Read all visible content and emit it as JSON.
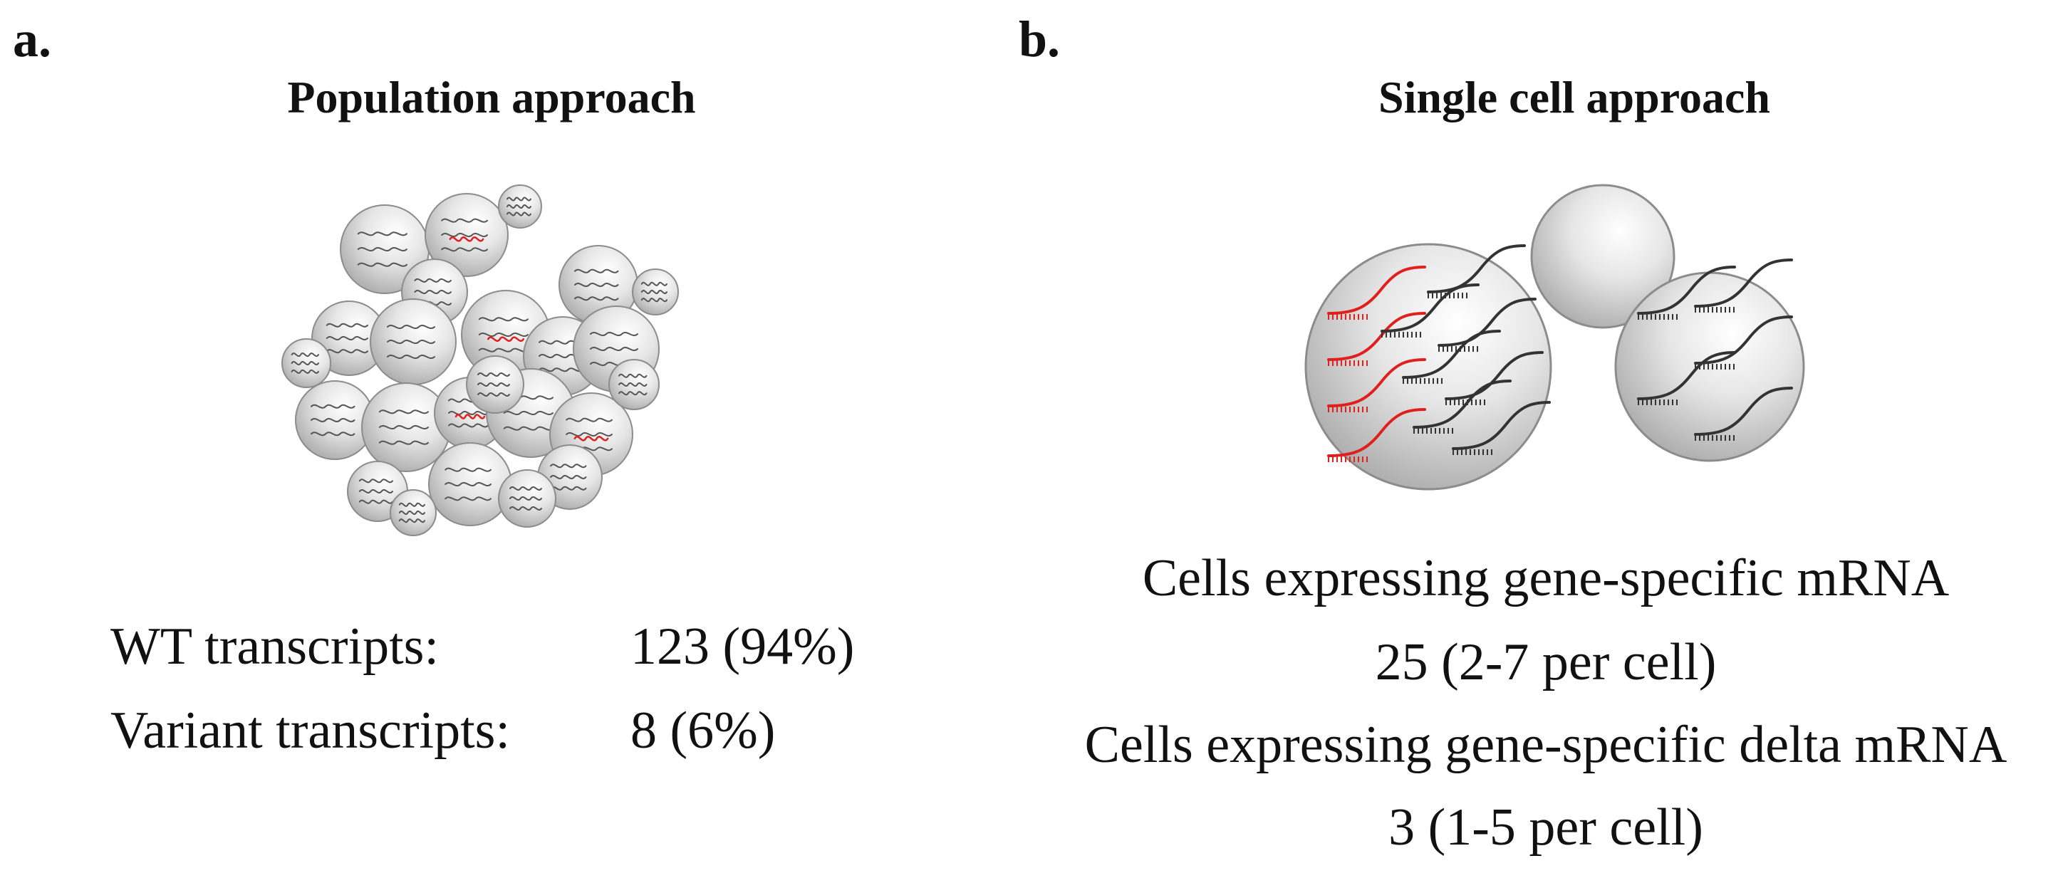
{
  "panel_a": {
    "label": "a.",
    "title": "Population approach",
    "stats": [
      {
        "label": "WT transcripts:",
        "value": "123 (94%)"
      },
      {
        "label": "Variant transcripts:",
        "value": "8 (6%)"
      }
    ]
  },
  "panel_b": {
    "label": "b.",
    "title": "Single cell approach",
    "lines": [
      "Cells expressing gene-specific mRNA",
      "25 (2-7 per cell)",
      "Cells expressing gene-specific delta mRNA",
      "3 (1-5 per cell)"
    ]
  },
  "colors": {
    "wt_transcript": "#333333",
    "variant_transcript": "#e0201c",
    "cell_fill": "#d9d9d9",
    "cell_outline": "#8c8c8c"
  }
}
